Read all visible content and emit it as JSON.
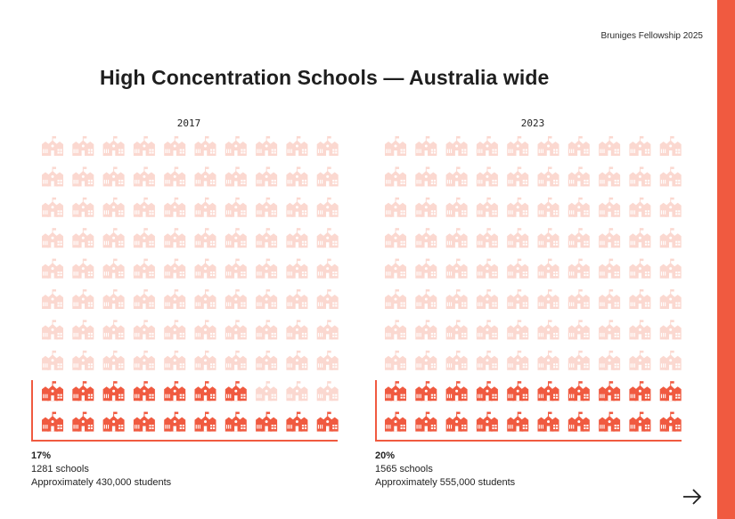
{
  "header": {
    "brand": "Bruniges Fellowship 2025"
  },
  "title": "High Concentration Schools — Australia wide",
  "colors": {
    "accent": "#f05a40",
    "highlight": "#f05a40",
    "faded": "#fbd8d0"
  },
  "icon": "school-building-icon",
  "chart_data": [
    {
      "type": "waffle",
      "label": "2017",
      "total_icons": 100,
      "highlighted_icons": 17,
      "percent": "17%",
      "schools": "1281 schools",
      "students": "Approximately 430,000 students"
    },
    {
      "type": "waffle",
      "label": "2023",
      "total_icons": 100,
      "highlighted_icons": 20,
      "percent": "20%",
      "schools": "1565 schools",
      "students": "Approximately 555,000 students"
    }
  ],
  "nav": {
    "next_icon": "arrow-right-icon"
  }
}
